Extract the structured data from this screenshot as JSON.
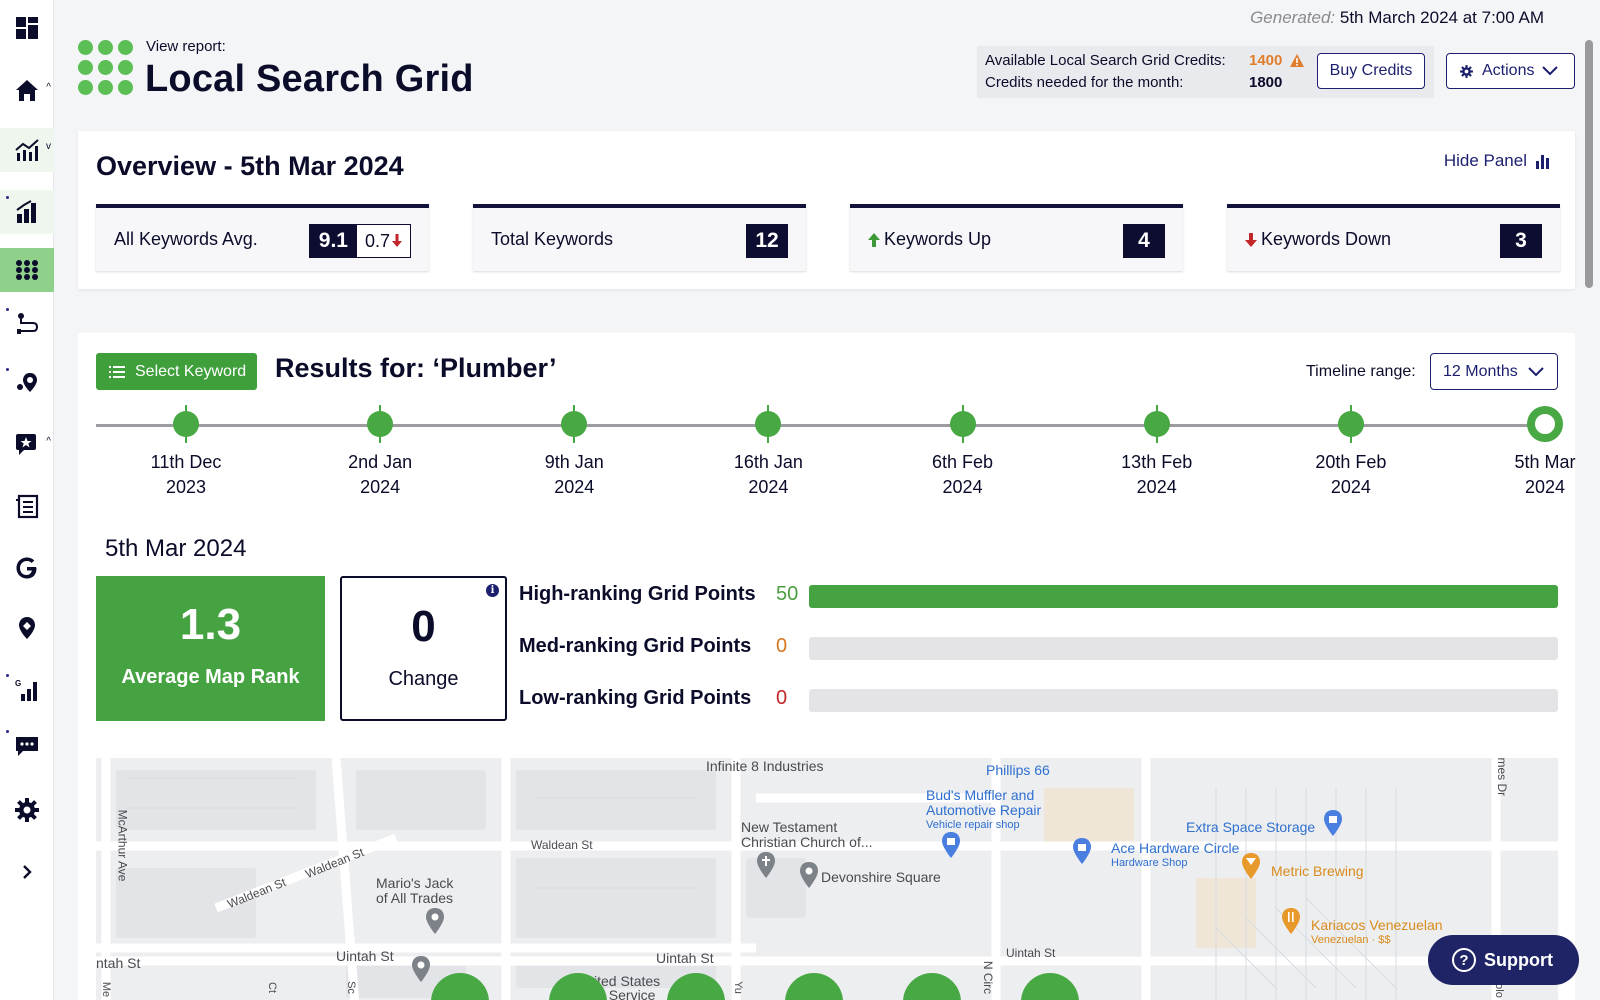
{
  "sidebar": {
    "items": [
      {
        "icon": "dashboard-icon"
      },
      {
        "icon": "home-icon"
      },
      {
        "icon": "analytics-icon"
      },
      {
        "icon": "bar-chart-icon"
      },
      {
        "icon": "grid-icon"
      },
      {
        "icon": "route-icon"
      },
      {
        "icon": "location-pin-icon"
      },
      {
        "icon": "star-review-icon"
      },
      {
        "icon": "document-list-icon"
      },
      {
        "icon": "google-icon"
      },
      {
        "icon": "map-marker-icon"
      },
      {
        "icon": "google-rank-icon"
      },
      {
        "icon": "chat-icon"
      },
      {
        "icon": "settings-icon"
      },
      {
        "icon": "chevron-right-icon"
      }
    ]
  },
  "header": {
    "generated_label": "Generated:",
    "generated_value": "5th March 2024 at 7:00 AM",
    "view_report": "View report:",
    "title": "Local Search Grid",
    "credits_available_label": "Available Local Search Grid Credits:",
    "credits_available_value": "1400",
    "credits_needed_label": "Credits needed for the month:",
    "credits_needed_value": "1800",
    "buy_credits": "Buy Credits",
    "actions": "Actions"
  },
  "overview": {
    "title": "Overview - 5th Mar 2024",
    "hide_panel": "Hide Panel",
    "stats": {
      "avg_label": "All Keywords Avg.",
      "avg_value": "9.1",
      "avg_change": "0.7",
      "total_label": "Total Keywords",
      "total_value": "12",
      "up_label": "Keywords Up",
      "up_value": "4",
      "down_label": "Keywords Down",
      "down_value": "3"
    }
  },
  "results": {
    "select_keyword": "Select Keyword",
    "title": "Results for: ‘Plumber’",
    "timeline_label": "Timeline range:",
    "timeline_value": "12 Months",
    "timeline": [
      {
        "line1": "11th Dec",
        "line2": "2023"
      },
      {
        "line1": "2nd Jan",
        "line2": "2024"
      },
      {
        "line1": "9th Jan",
        "line2": "2024"
      },
      {
        "line1": "16th Jan",
        "line2": "2024"
      },
      {
        "line1": "6th Feb",
        "line2": "2024"
      },
      {
        "line1": "13th Feb",
        "line2": "2024"
      },
      {
        "line1": "20th Feb",
        "line2": "2024"
      },
      {
        "line1": "5th Mar",
        "line2": "2024"
      }
    ],
    "selected_date": "5th Mar 2024",
    "avg_map_rank_value": "1.3",
    "avg_map_rank_label": "Average Map Rank",
    "change_value": "0",
    "change_label": "Change",
    "grid_points": [
      {
        "label": "High-ranking Grid Points",
        "count": "50",
        "fraction": 1.0,
        "color": "#4a9e3f"
      },
      {
        "label": "Med-ranking Grid Points",
        "count": "0",
        "fraction": 0,
        "color": "#d4761f"
      },
      {
        "label": "Low-ranking Grid Points",
        "count": "0",
        "fraction": 0,
        "color": "#c0262a"
      }
    ]
  },
  "map": {
    "labels": {
      "infinite": "Infinite 8 Industries",
      "phillips": "Phillips 66",
      "buds1": "Bud's Muffler and",
      "buds2": "Automotive Repair",
      "buds3": "Vehicle repair shop",
      "extra_space": "Extra Space Storage",
      "ace1": "Ace Hardware Circle",
      "ace2": "Hardware Shop",
      "metric": "Metric Brewing",
      "kariacos1": "Kariacos Venezuelan",
      "kariacos2": "Venezuelan · $$",
      "new_testament1": "New Testament",
      "new_testament2": "Christian Church of...",
      "devonshire": "Devonshire Square",
      "waldean_st1": "Waldean St",
      "waldean_st2": "Waldean St",
      "waldean_st3": "Waldean St",
      "marios1": "Mario's Jack",
      "marios2": "of All Trades",
      "mcarthur": "McArthur Ave",
      "uintah1": "Uintah St",
      "uintah2": "Uintah St",
      "uintah3": "Uintah St",
      "uintah4": "ntah St",
      "united_states1": "ited States",
      "united_states2": "al Service",
      "n_circle": "N Circ",
      "james": "imes Dr",
      "ct": "Ct",
      "sc": "Sc",
      "yu": "Yu",
      "me": "Me",
      "olo": "olo"
    }
  },
  "support": "Support",
  "colors": {
    "brand_green": "#45a341",
    "navy": "#0c0d30",
    "warning_orange": "#e07d2c",
    "down_red": "#c0262a",
    "up_green": "#3e9a39"
  }
}
